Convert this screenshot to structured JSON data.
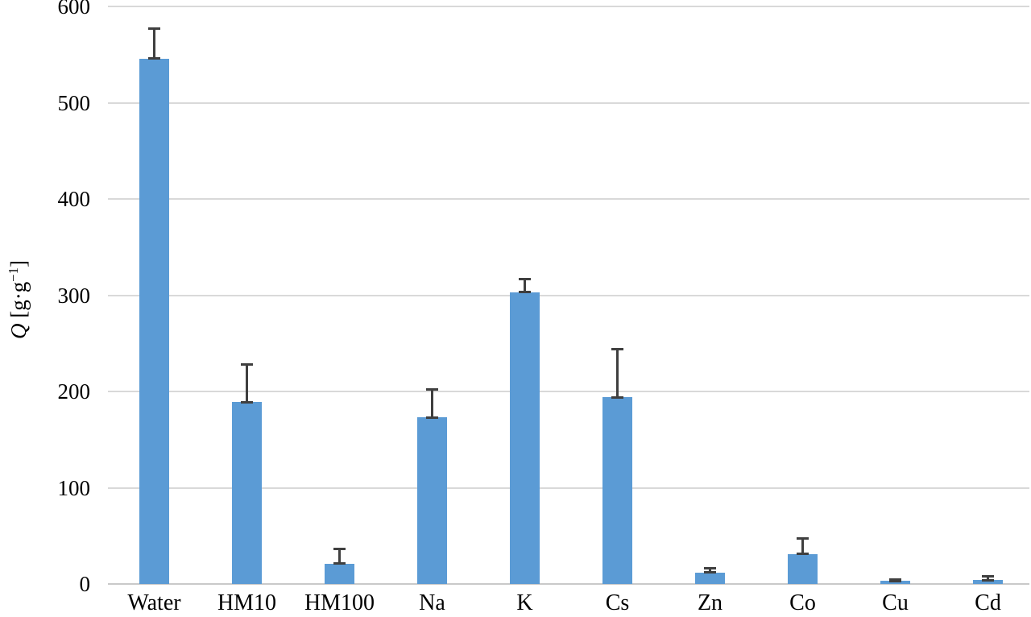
{
  "chart_data": {
    "type": "bar",
    "title": "",
    "xlabel": "",
    "ylabel": "Q [g·g⁻¹]",
    "ylabel_parts": {
      "symbol": "Q",
      "unit_pre": " [g·g",
      "unit_sup": "−1",
      "unit_post": "]"
    },
    "categories": [
      "Water",
      "HM10",
      "HM100",
      "Na",
      "K",
      "Cs",
      "Zn",
      "Co",
      "Cu",
      "Cd"
    ],
    "series": [
      {
        "name": "Q",
        "values": [
          546,
          189,
          21,
          173,
          303,
          194,
          12,
          31,
          3,
          4
        ],
        "errors_plus": [
          31,
          39,
          15,
          29,
          14,
          50,
          4,
          16,
          2,
          4
        ]
      }
    ],
    "ylim": [
      0,
      600
    ],
    "yticks": [
      0,
      100,
      200,
      300,
      400,
      500,
      600
    ],
    "grid": "horizontal",
    "legend": "none",
    "error_bars": "upward whiskers with caps",
    "colors": {
      "bar": "#5B9BD5",
      "error_bar": "#3F3F3F",
      "gridline": "#D9D9D9",
      "axis_line": "#C9C9C9",
      "text": "#000000",
      "background": "#FFFFFF"
    }
  }
}
